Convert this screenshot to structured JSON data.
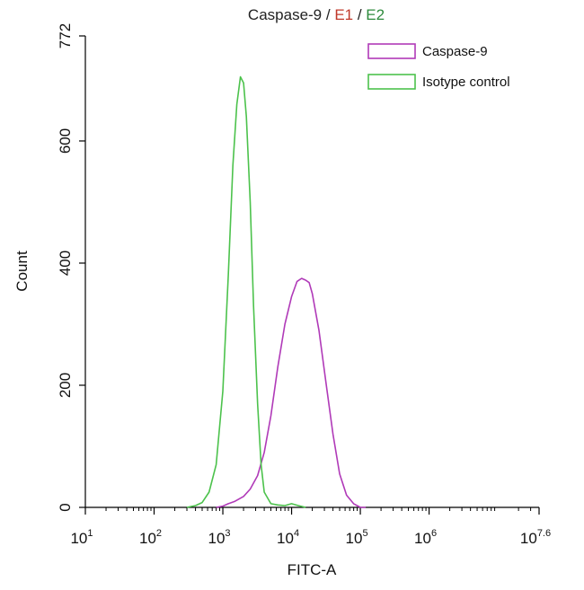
{
  "chart_data": {
    "type": "line",
    "title_parts": [
      {
        "text": "Caspase-9",
        "color": "#222222"
      },
      {
        "text": " / ",
        "color": "#222222"
      },
      {
        "text": "E1",
        "color": "#c0392b"
      },
      {
        "text": " / ",
        "color": "#222222"
      },
      {
        "text": "E2",
        "color": "#2e8b3d"
      }
    ],
    "xlabel": "FITC-A",
    "ylabel": "Count",
    "x_scale": "log10",
    "xlim": [
      10,
      39810717
    ],
    "ylim": [
      0,
      772
    ],
    "x_ticks": [
      {
        "base": "10",
        "exp": "1",
        "value": 10
      },
      {
        "base": "10",
        "exp": "2",
        "value": 100
      },
      {
        "base": "10",
        "exp": "3",
        "value": 1000
      },
      {
        "base": "10",
        "exp": "4",
        "value": 10000
      },
      {
        "base": "10",
        "exp": "5",
        "value": 100000
      },
      {
        "base": "10",
        "exp": "6",
        "value": 1000000
      },
      {
        "base": "10",
        "exp": "7.6",
        "value": 39810717
      }
    ],
    "y_ticks": [
      "0",
      "200",
      "400",
      "600",
      "772"
    ],
    "y_tick_values": [
      0,
      200,
      400,
      600,
      772
    ],
    "legend_position": "top-right",
    "series": [
      {
        "name": "Caspase-9",
        "color": "#b03ab8",
        "x": [
          800,
          1000,
          1200,
          1500,
          2000,
          2500,
          3200,
          4000,
          5000,
          6300,
          8000,
          10000,
          12000,
          14000,
          16000,
          18000,
          20000,
          25000,
          32000,
          40000,
          50000,
          63000,
          80000,
          100000,
          120000
        ],
        "y": [
          0,
          2,
          6,
          10,
          18,
          30,
          52,
          90,
          150,
          230,
          300,
          345,
          370,
          375,
          372,
          368,
          350,
          290,
          200,
          120,
          55,
          20,
          6,
          0,
          0
        ]
      },
      {
        "name": "Isotype control",
        "color": "#4cc24c",
        "x": [
          300,
          400,
          500,
          630,
          800,
          1000,
          1200,
          1400,
          1600,
          1800,
          2000,
          2200,
          2500,
          2800,
          3200,
          3600,
          4000,
          5000,
          6300,
          8000,
          10000,
          12500,
          16000
        ],
        "y": [
          0,
          3,
          8,
          25,
          70,
          190,
          380,
          560,
          660,
          705,
          695,
          640,
          500,
          330,
          170,
          70,
          25,
          6,
          4,
          3,
          6,
          3,
          0
        ]
      }
    ]
  }
}
